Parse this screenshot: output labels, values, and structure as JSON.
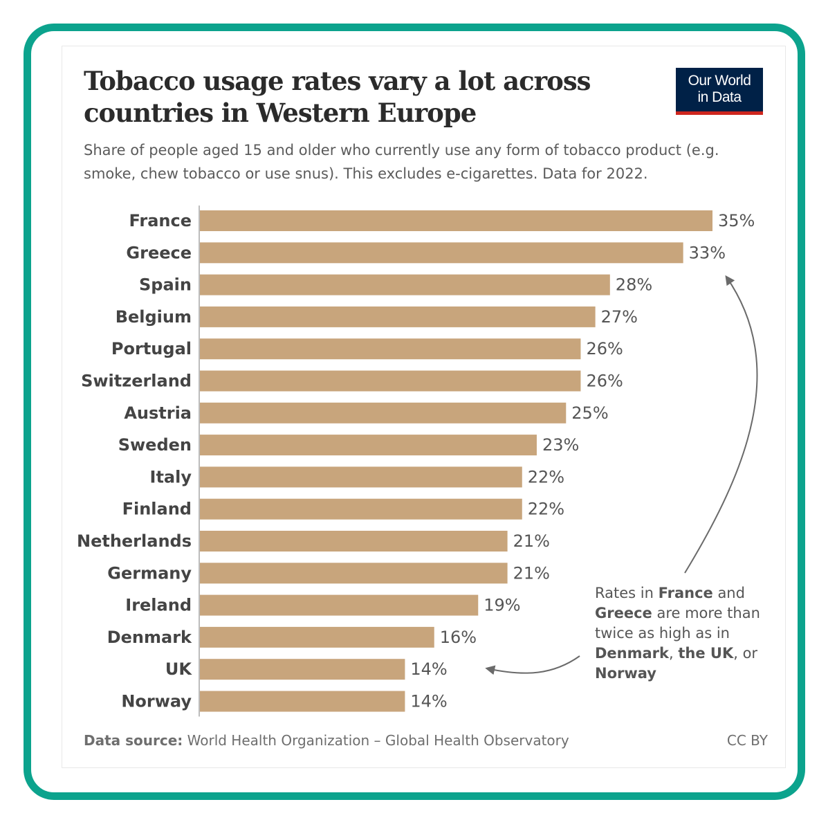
{
  "title": "Tobacco usage rates vary a lot across countries in Western Europe",
  "subtitle": "Share of people aged 15 and older who currently use any form of tobacco product (e.g. smoke, chew tobacco or use snus). This excludes e-cigarettes. Data for 2022.",
  "logo": {
    "line1": "Our World",
    "line2": "in Data"
  },
  "footer": {
    "source_label": "Data source:",
    "source_text": " World Health Organization – Global Health Observatory",
    "license": "CC BY"
  },
  "annotation": {
    "parts": [
      {
        "text": "Rates in ",
        "bold": false
      },
      {
        "text": "France",
        "bold": true
      },
      {
        "text": " and ",
        "bold": false
      },
      {
        "text": "Greece",
        "bold": true
      },
      {
        "text": " are more than twice as high as in ",
        "bold": false
      },
      {
        "text": "Denmark",
        "bold": true
      },
      {
        "text": ", ",
        "bold": false
      },
      {
        "text": "the UK",
        "bold": true
      },
      {
        "text": ", or ",
        "bold": false
      },
      {
        "text": "Norway",
        "bold": true
      }
    ]
  },
  "colors": {
    "bar": "#c8a57c",
    "frame": "#0ca38d",
    "logo_bg": "#002147",
    "logo_accent": "#ce261e",
    "text_dark": "#444444",
    "label_value": "#555555",
    "arrow": "#6a6a6a"
  },
  "chart_data": {
    "type": "bar",
    "orientation": "horizontal",
    "unit": "%",
    "categories": [
      "France",
      "Greece",
      "Spain",
      "Belgium",
      "Portugal",
      "Switzerland",
      "Austria",
      "Sweden",
      "Italy",
      "Finland",
      "Netherlands",
      "Germany",
      "Ireland",
      "Denmark",
      "UK",
      "Norway"
    ],
    "values": [
      35,
      33,
      28,
      27,
      26,
      26,
      25,
      23,
      22,
      22,
      21,
      21,
      19,
      16,
      14,
      14
    ],
    "value_labels": [
      "35%",
      "33%",
      "28%",
      "27%",
      "26%",
      "26%",
      "25%",
      "23%",
      "22%",
      "22%",
      "21%",
      "21%",
      "19%",
      "16%",
      "14%",
      "14%"
    ],
    "xlim": [
      0,
      35
    ],
    "grid": false,
    "legend": "none"
  }
}
